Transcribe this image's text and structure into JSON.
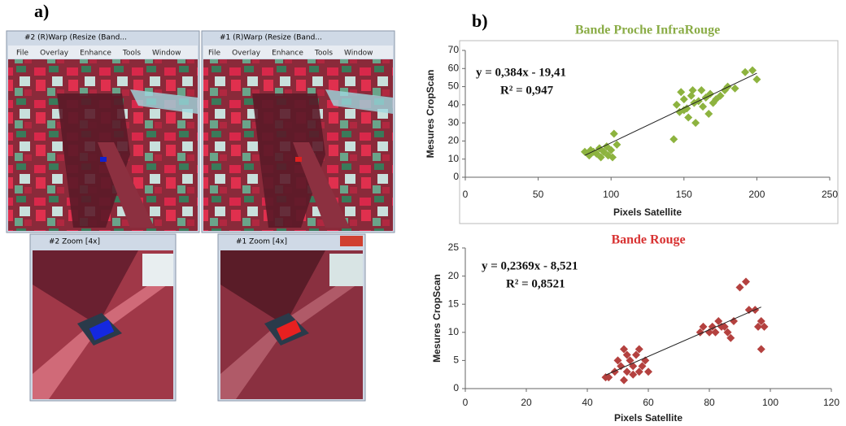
{
  "panels": {
    "label_a": "a)",
    "label_b": "b)",
    "windows": [
      {
        "title": "#2 (R)Warp (Resize (Band...",
        "menu": [
          "File",
          "Overlay",
          "Enhance",
          "Tools",
          "Window"
        ]
      },
      {
        "title": "#1 (R)Warp (Resize (Band...",
        "menu": [
          "File",
          "Overlay",
          "Enhance",
          "Tools",
          "Window"
        ]
      }
    ],
    "zooms": [
      {
        "title": "#2 Zoom [4x]"
      },
      {
        "title": "#1 Zoom [4x]"
      }
    ]
  },
  "chart_data": [
    {
      "type": "scatter",
      "title": "Bande Proche InfraRouge",
      "title_color": "#8aac46",
      "x_label": "Pixels Satellite",
      "y_label": "Mesures CropScan",
      "color": "#8db33f",
      "annotations": [
        "y = 0,384x - 19,41",
        "R² = 0,947"
      ],
      "x": [
        82,
        84,
        86,
        88,
        90,
        92,
        95,
        97,
        98,
        100,
        101,
        102,
        104,
        85,
        93,
        143,
        145,
        147,
        148,
        150,
        152,
        153,
        155,
        157,
        158,
        160,
        162,
        163,
        165,
        167,
        168,
        170,
        172,
        175,
        178,
        180,
        185,
        192,
        197,
        200,
        150,
        156
      ],
      "values": [
        14,
        13,
        15,
        14,
        13,
        16,
        14,
        17,
        12,
        15,
        11,
        24,
        18,
        12,
        11,
        21,
        40,
        36,
        47,
        43,
        38,
        33,
        45,
        41,
        30,
        42,
        48,
        39,
        44,
        35,
        46,
        41,
        43,
        45,
        48,
        50,
        49,
        58,
        59,
        54,
        37,
        48
      ],
      "trendline": {
        "x": [
          82,
          200
        ],
        "y": [
          12.1,
          57.4
        ]
      },
      "xlim": [
        0,
        250
      ],
      "xticks": [
        0,
        50,
        100,
        150,
        200,
        250
      ],
      "ylim": [
        0,
        70
      ],
      "yticks": [
        0,
        10,
        20,
        30,
        40,
        50,
        60,
        70
      ]
    },
    {
      "type": "scatter",
      "title": "Bande Rouge",
      "title_color": "#d83232",
      "x_label": "Pixels Satellite",
      "y_label": "Mesures CropScan",
      "color": "#b4413f",
      "annotations": [
        "y = 0,2369x - 8,521",
        "R² = 0,8521"
      ],
      "x": [
        46,
        47,
        49,
        50,
        51,
        52,
        53,
        53,
        54,
        55,
        56,
        57,
        58,
        59,
        60,
        52,
        55,
        57,
        77,
        78,
        80,
        81,
        82,
        83,
        84,
        85,
        86,
        87,
        88,
        90,
        92,
        93,
        95,
        96,
        97,
        97,
        98
      ],
      "values": [
        2,
        2,
        3,
        5,
        4,
        7,
        6,
        3,
        5,
        4,
        6,
        7,
        4,
        5,
        3,
        1.5,
        2.5,
        3,
        10,
        11,
        10,
        11,
        10,
        12,
        11,
        11,
        10,
        9,
        12,
        18,
        19,
        14,
        14,
        11,
        7,
        12,
        11
      ],
      "trendline": {
        "x": [
          46,
          97
        ],
        "y": [
          2.4,
          14.5
        ]
      },
      "xlim": [
        0,
        120
      ],
      "xticks": [
        0,
        20,
        40,
        60,
        80,
        100,
        120
      ],
      "ylim": [
        0,
        25
      ],
      "yticks": [
        0,
        5,
        10,
        15,
        20,
        25
      ]
    }
  ]
}
